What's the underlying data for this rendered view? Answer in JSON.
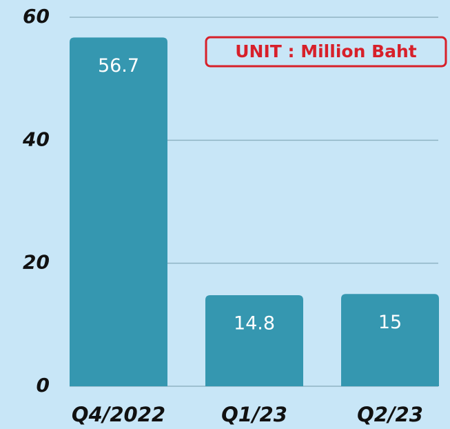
{
  "chart_data": {
    "type": "bar",
    "categories": [
      "Q4/2022",
      "Q1/23",
      "Q2/23"
    ],
    "values": [
      56.7,
      14.8,
      15
    ],
    "color": "#3597b0",
    "ylim": [
      0,
      60
    ],
    "yticks": [
      0,
      20,
      40,
      60
    ],
    "grid": true,
    "annotation": "UNIT : Million Baht"
  }
}
